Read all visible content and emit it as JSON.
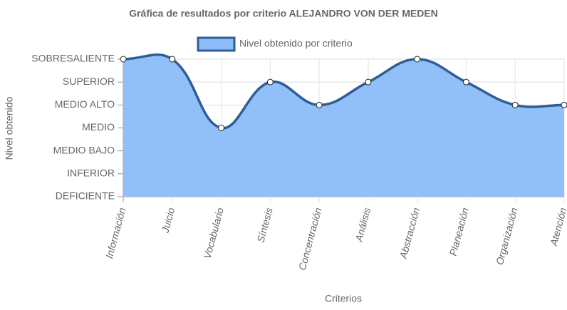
{
  "chart_data": {
    "type": "area",
    "title": "Gráfica de resultados por criterio ALEJANDRO VON DER MEDEN",
    "x_label": "Criterios",
    "y_label": "Nivel obtenido",
    "categories": [
      "Información",
      "Juicio",
      "Vocabulario",
      "Síntesis",
      "Concentración",
      "Análisis",
      "Abstracción",
      "Planeación",
      "Organización",
      "Atención"
    ],
    "series": [
      {
        "name": "Nivel obtenido por criterio",
        "color": "#2f5d95",
        "fill": "#8bbcf7",
        "values": [
          6,
          6,
          3,
          5,
          4,
          5,
          6,
          5,
          4,
          4
        ]
      }
    ],
    "ylim": [
      0,
      6
    ],
    "yticks": [
      {
        "value": 0,
        "label": "DEFICIENTE"
      },
      {
        "value": 1,
        "label": "INFERIOR"
      },
      {
        "value": 2,
        "label": "MEDIO BAJO"
      },
      {
        "value": 3,
        "label": "MEDIO"
      },
      {
        "value": 4,
        "label": "MEDIO ALTO"
      },
      {
        "value": 5,
        "label": "SUPERIOR"
      },
      {
        "value": 6,
        "label": "SOBRESALIENTE"
      }
    ],
    "grid": true,
    "legend": "top"
  }
}
